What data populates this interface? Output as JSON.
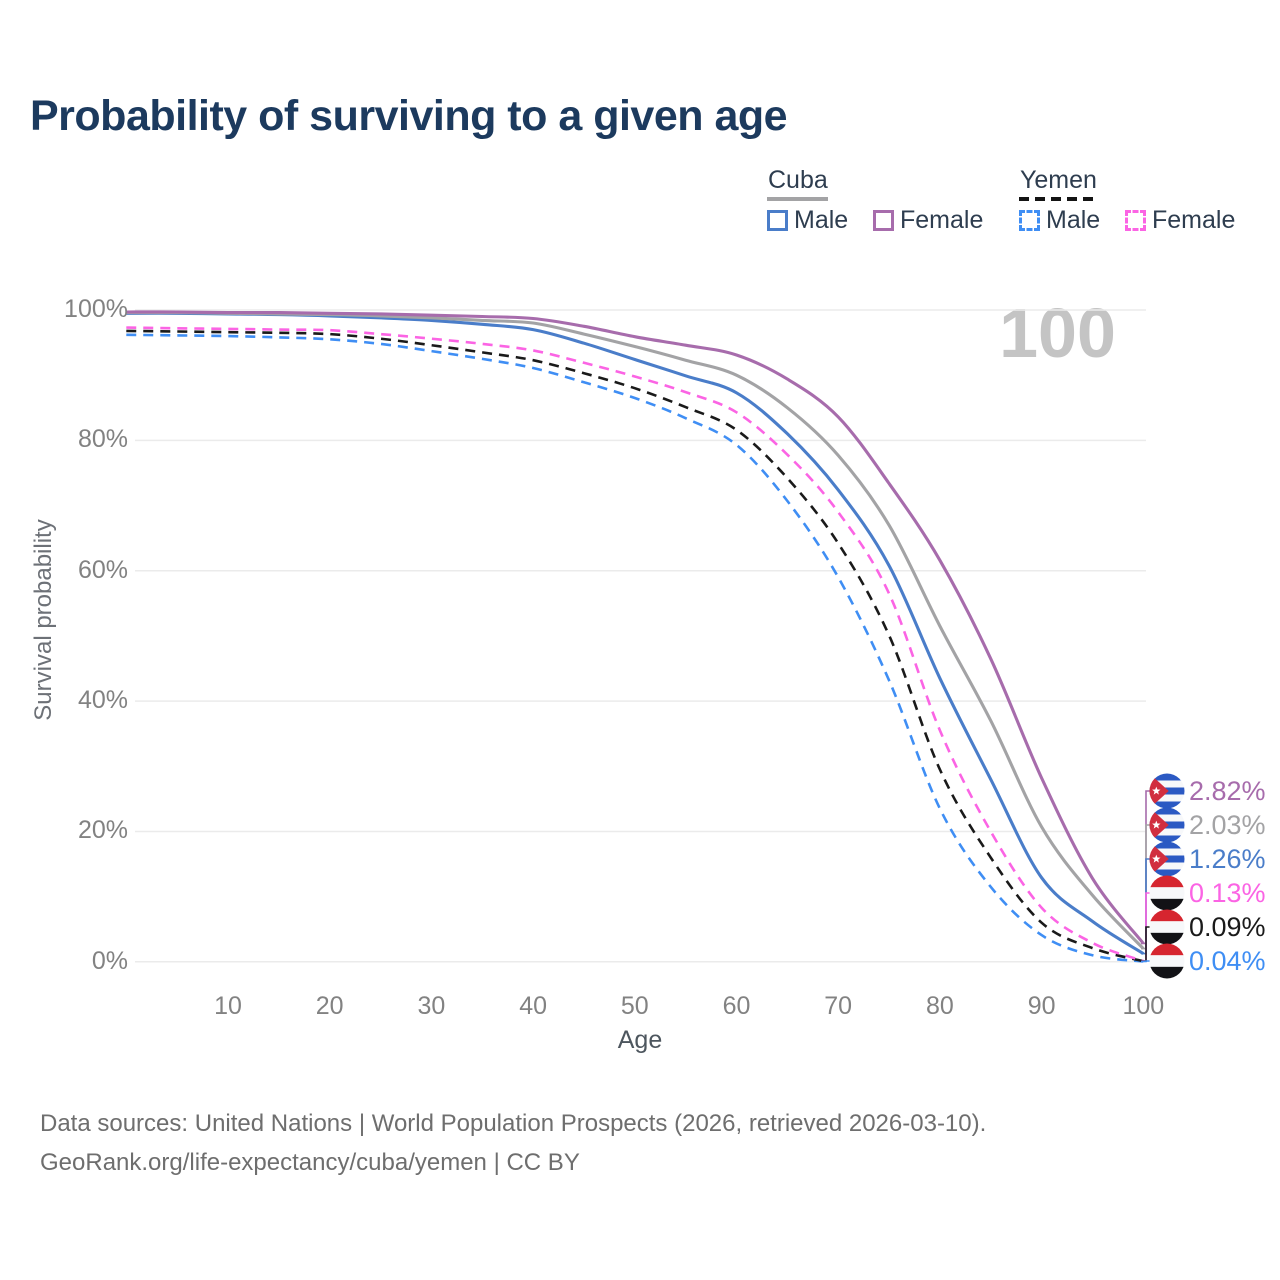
{
  "title": "Probability of surviving to a given age",
  "age_indicator": "100",
  "legend": {
    "groups": [
      {
        "country": "Cuba",
        "line_style": "solid",
        "underline_color": "#a3a3a5",
        "items": [
          {
            "label": "Male",
            "color": "#4a7dc9",
            "dashed": false
          },
          {
            "label": "Female",
            "color": "#a76cac",
            "dashed": false
          }
        ]
      },
      {
        "country": "Yemen",
        "line_style": "dashed",
        "underline_color": "#141414",
        "items": [
          {
            "label": "Male",
            "color": "#3f8ef4",
            "dashed": true
          },
          {
            "label": "Female",
            "color": "#fb64e4",
            "dashed": true
          }
        ]
      }
    ]
  },
  "axes": {
    "x_label": "Age",
    "y_label": "Survival probability",
    "x_ticks": [
      10,
      20,
      30,
      40,
      50,
      60,
      70,
      80,
      90,
      100
    ],
    "y_ticks": [
      {
        "value": 0,
        "label": "0%"
      },
      {
        "value": 20,
        "label": "20%"
      },
      {
        "value": 40,
        "label": "40%"
      },
      {
        "value": 60,
        "label": "60%"
      },
      {
        "value": 80,
        "label": "80%"
      },
      {
        "value": 100,
        "label": "100%"
      }
    ]
  },
  "chart_data": {
    "type": "line",
    "title": "Probability of surviving to a given age",
    "xlabel": "Age",
    "ylabel": "Survival probability",
    "xlim": [
      0,
      100
    ],
    "ylim": [
      0,
      100
    ],
    "grid": "horizontal",
    "legend_position": "top-right",
    "x": [
      0,
      5,
      10,
      15,
      20,
      25,
      30,
      35,
      40,
      45,
      50,
      55,
      60,
      65,
      70,
      75,
      80,
      85,
      90,
      95,
      100
    ],
    "series": [
      {
        "id": "cuba-female",
        "country": "Cuba",
        "group": "Female",
        "color": "#a76cac",
        "dashed": false,
        "flag": "cuba",
        "end_label": "2.82%",
        "values": [
          99.7,
          99.7,
          99.6,
          99.6,
          99.5,
          99.4,
          99.2,
          99.0,
          98.7,
          97.5,
          95.9,
          94.6,
          93.1,
          89.4,
          83.6,
          73.4,
          61.6,
          46.5,
          28.2,
          12.8,
          2.82
        ]
      },
      {
        "id": "cuba-combined",
        "country": "Cuba",
        "group": "Cuba",
        "color": "#a3a3a5",
        "dashed": false,
        "flag": "cuba",
        "end_label": "2.03%",
        "values": [
          99.6,
          99.6,
          99.5,
          99.4,
          99.3,
          99.1,
          98.8,
          98.4,
          98.0,
          96.3,
          94.4,
          92.3,
          90.0,
          85.0,
          77.7,
          67.0,
          51.5,
          37.0,
          20.7,
          10.2,
          2.03
        ]
      },
      {
        "id": "cuba-male",
        "country": "Cuba",
        "group": "Male",
        "color": "#4a7dc9",
        "dashed": false,
        "flag": "cuba",
        "end_label": "1.26%",
        "values": [
          99.5,
          99.5,
          99.4,
          99.3,
          99.1,
          98.8,
          98.4,
          97.8,
          97.0,
          94.9,
          92.4,
          89.9,
          87.3,
          81.0,
          72.4,
          60.8,
          43.5,
          28.0,
          12.9,
          6.2,
          1.26
        ]
      },
      {
        "id": "yemen-female",
        "country": "Yemen",
        "group": "Female",
        "color": "#fb64e4",
        "dashed": true,
        "flag": "yemen",
        "end_label": "0.13%",
        "values": [
          97.3,
          97.2,
          97.1,
          97.0,
          96.9,
          96.3,
          95.6,
          94.8,
          93.8,
          91.9,
          89.8,
          87.4,
          84.3,
          77.8,
          69.0,
          56.5,
          35.5,
          20.0,
          8.3,
          2.9,
          0.13
        ]
      },
      {
        "id": "yemen-combined",
        "country": "Yemen",
        "group": "Yemen",
        "color": "#1a1a1a",
        "dashed": true,
        "flag": "yemen",
        "end_label": "0.09%",
        "values": [
          96.8,
          96.7,
          96.6,
          96.5,
          96.3,
          95.6,
          94.6,
          93.5,
          92.3,
          90.3,
          88.0,
          85.1,
          81.6,
          74.2,
          64.2,
          50.1,
          29.5,
          16.0,
          6.0,
          2.1,
          0.09
        ]
      },
      {
        "id": "yemen-male",
        "country": "Yemen",
        "group": "Male",
        "color": "#3f8ef4",
        "dashed": true,
        "flag": "yemen",
        "end_label": "0.04%",
        "values": [
          96.2,
          96.1,
          96.0,
          95.8,
          95.5,
          94.8,
          93.7,
          92.5,
          91.1,
          88.9,
          86.5,
          83.4,
          79.3,
          70.7,
          59.0,
          43.2,
          23.5,
          11.5,
          4.1,
          1.0,
          0.04
        ]
      }
    ]
  },
  "flag_colors": {
    "cuba": {
      "stripe_blue": "#2b59c3",
      "stripe_white": "#f7f8fa",
      "triangle_red": "#d12e3f",
      "star": "#ffffff"
    },
    "yemen": {
      "red": "#d6252f",
      "white": "#f7f8fa",
      "black": "#121216"
    }
  },
  "grid_color": "#ebebeb",
  "footer": {
    "line1": "Data sources: United Nations | World Population Prospects (2026, retrieved 2026-03-10).",
    "line2": "GeoRank.org/life-expectancy/cuba/yemen | CC BY"
  }
}
